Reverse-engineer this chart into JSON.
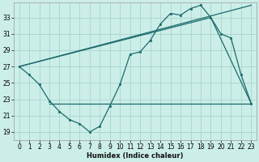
{
  "xlabel": "Humidex (Indice chaleur)",
  "x_ticks": [
    0,
    1,
    2,
    3,
    4,
    5,
    6,
    7,
    8,
    9,
    10,
    11,
    12,
    13,
    14,
    15,
    16,
    17,
    18,
    19,
    20,
    21,
    22,
    23
  ],
  "y_ticks": [
    19,
    21,
    23,
    25,
    27,
    29,
    31,
    33
  ],
  "xlim": [
    -0.5,
    23.5
  ],
  "ylim": [
    18.0,
    34.8
  ],
  "bg_color": "#cceee8",
  "grid_color": "#aad8d2",
  "line_color": "#1a6b6b",
  "series_main": {
    "x": [
      0,
      1,
      2,
      3,
      4,
      5,
      6,
      7,
      8,
      9,
      10,
      11,
      12,
      13,
      14,
      15,
      16,
      17,
      18,
      19,
      20,
      21,
      22,
      23
    ],
    "y": [
      27.0,
      26.0,
      24.8,
      22.8,
      21.5,
      20.5,
      20.0,
      19.0,
      19.7,
      22.2,
      24.8,
      28.5,
      28.8,
      30.2,
      32.2,
      33.5,
      33.3,
      34.1,
      34.5,
      33.0,
      31.0,
      30.5,
      26.0,
      22.5
    ]
  },
  "trend_line1": {
    "x": [
      0,
      23
    ],
    "y": [
      27.0,
      34.5
    ]
  },
  "trend_line2": {
    "x": [
      0,
      19,
      23
    ],
    "y": [
      27.0,
      33.0,
      22.5
    ]
  },
  "hline": {
    "x": [
      3,
      23
    ],
    "y": [
      22.5,
      22.5
    ]
  }
}
